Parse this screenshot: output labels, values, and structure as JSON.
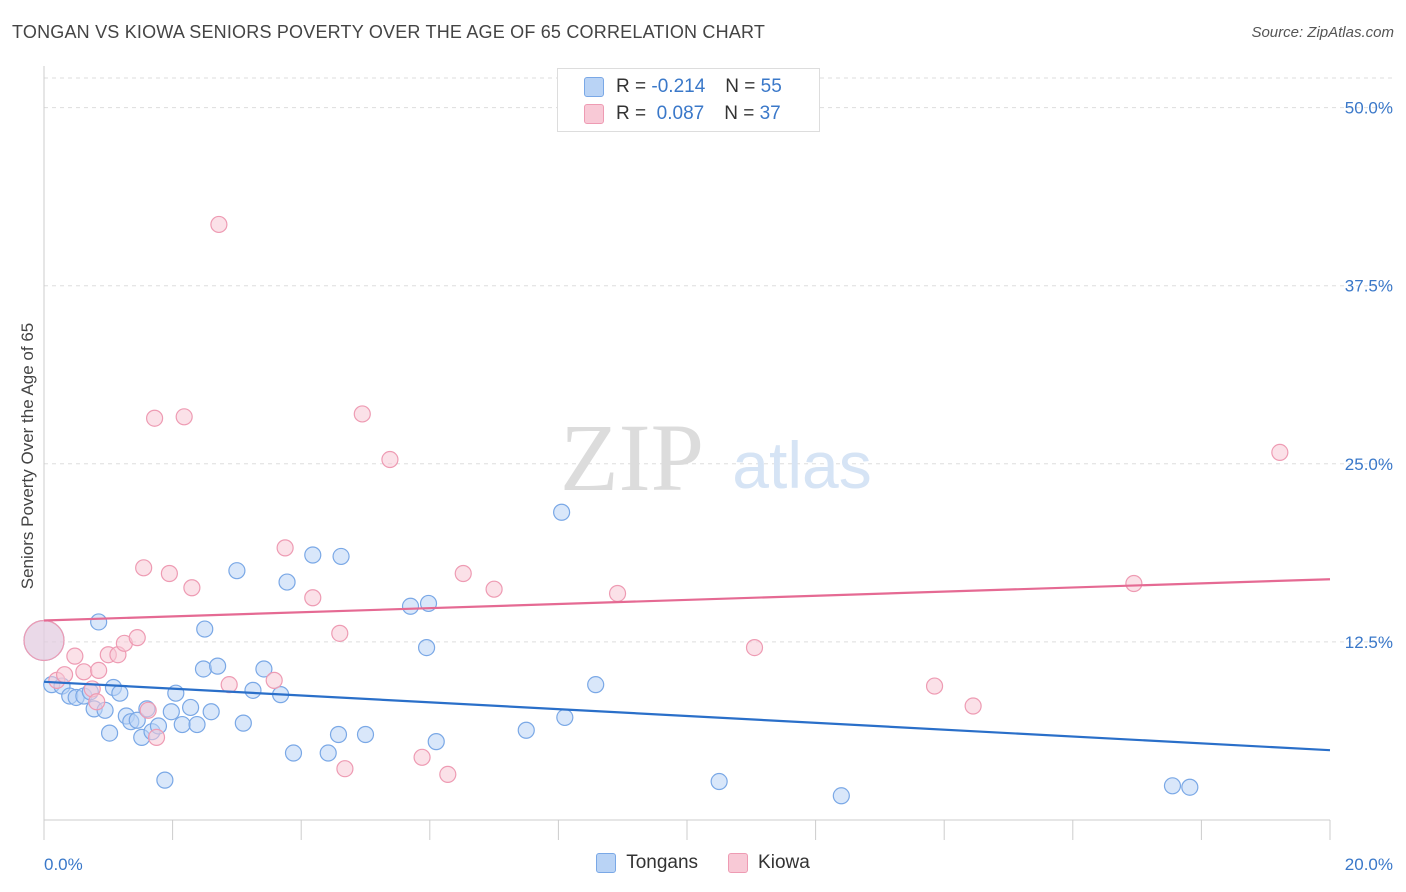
{
  "title": "TONGAN VS KIOWA SENIORS POVERTY OVER THE AGE OF 65 CORRELATION CHART",
  "source": "Source: ZipAtlas.com",
  "watermark": {
    "zip": "ZIP",
    "atlas": "atlas"
  },
  "legend": {
    "rows": [
      {
        "r_label": "R =",
        "r_value": "-0.214",
        "n_label": "N =",
        "n_value": "55"
      },
      {
        "r_label": "R =",
        "r_value": " 0.087",
        "n_label": "N =",
        "n_value": "37"
      }
    ]
  },
  "colors": {
    "blue_fill": "#b9d3f5",
    "blue_stroke": "#7aa8e6",
    "blue_line": "#2a6fc9",
    "pink_fill": "#f8c9d6",
    "pink_stroke": "#ee9bb3",
    "pink_line": "#e56a93",
    "tick_text": "#3a78c9",
    "grid": "#dddddd"
  },
  "chart_data": {
    "type": "scatter",
    "title": "TONGAN VS KIOWA SENIORS POVERTY OVER THE AGE OF 65 CORRELATION CHART",
    "xlabel": "",
    "ylabel": "Seniors Poverty Over the Age of 65",
    "xlim": [
      0,
      20
    ],
    "ylim": [
      0,
      52.5
    ],
    "x_tick_labels": [
      "0.0%",
      "20.0%"
    ],
    "y_ticks": [
      12.5,
      25.0,
      37.5,
      50.0
    ],
    "y_tick_labels": [
      "12.5%",
      "25.0%",
      "37.5%",
      "50.0%"
    ],
    "grid": true,
    "series": [
      {
        "name": "Tongans",
        "color": "#7aa8e6",
        "trend": {
          "x": [
            0,
            20
          ],
          "y": [
            9.7,
            4.9
          ]
        },
        "points": [
          {
            "x": 0.0,
            "y": 12.6,
            "big": true
          },
          {
            "x": 0.12,
            "y": 9.5
          },
          {
            "x": 0.28,
            "y": 9.4
          },
          {
            "x": 0.4,
            "y": 8.7
          },
          {
            "x": 0.5,
            "y": 8.6
          },
          {
            "x": 0.62,
            "y": 8.7
          },
          {
            "x": 0.72,
            "y": 9.0
          },
          {
            "x": 0.78,
            "y": 7.8
          },
          {
            "x": 0.85,
            "y": 13.9
          },
          {
            "x": 0.95,
            "y": 7.7
          },
          {
            "x": 1.02,
            "y": 6.1
          },
          {
            "x": 1.08,
            "y": 9.3
          },
          {
            "x": 1.18,
            "y": 8.9
          },
          {
            "x": 1.28,
            "y": 7.3
          },
          {
            "x": 1.35,
            "y": 6.9
          },
          {
            "x": 1.45,
            "y": 7.0
          },
          {
            "x": 1.52,
            "y": 5.8
          },
          {
            "x": 1.6,
            "y": 7.8
          },
          {
            "x": 1.68,
            "y": 6.2
          },
          {
            "x": 1.78,
            "y": 6.6
          },
          {
            "x": 1.88,
            "y": 2.8
          },
          {
            "x": 1.98,
            "y": 7.6
          },
          {
            "x": 2.05,
            "y": 8.9
          },
          {
            "x": 2.15,
            "y": 6.7
          },
          {
            "x": 2.28,
            "y": 7.9
          },
          {
            "x": 2.38,
            "y": 6.7
          },
          {
            "x": 2.5,
            "y": 13.4
          },
          {
            "x": 2.48,
            "y": 10.6
          },
          {
            "x": 2.6,
            "y": 7.6
          },
          {
            "x": 2.7,
            "y": 10.8
          },
          {
            "x": 3.0,
            "y": 17.5
          },
          {
            "x": 3.1,
            "y": 6.8
          },
          {
            "x": 3.25,
            "y": 9.1
          },
          {
            "x": 3.42,
            "y": 10.6
          },
          {
            "x": 3.68,
            "y": 8.8
          },
          {
            "x": 3.78,
            "y": 16.7
          },
          {
            "x": 3.88,
            "y": 4.7
          },
          {
            "x": 4.18,
            "y": 18.6
          },
          {
            "x": 4.42,
            "y": 4.7
          },
          {
            "x": 4.58,
            "y": 6.0
          },
          {
            "x": 4.62,
            "y": 18.5
          },
          {
            "x": 5.0,
            "y": 6.0
          },
          {
            "x": 5.7,
            "y": 15.0
          },
          {
            "x": 5.95,
            "y": 12.1
          },
          {
            "x": 5.98,
            "y": 15.2
          },
          {
            "x": 6.1,
            "y": 5.5
          },
          {
            "x": 7.5,
            "y": 6.3
          },
          {
            "x": 8.05,
            "y": 21.6
          },
          {
            "x": 8.1,
            "y": 7.2
          },
          {
            "x": 8.58,
            "y": 9.5
          },
          {
            "x": 10.5,
            "y": 2.7
          },
          {
            "x": 12.4,
            "y": 1.7
          },
          {
            "x": 17.55,
            "y": 2.4
          },
          {
            "x": 17.82,
            "y": 2.3
          }
        ]
      },
      {
        "name": "Kiowa",
        "color": "#ee9bb3",
        "trend": {
          "x": [
            0,
            20
          ],
          "y": [
            14.0,
            16.9
          ]
        },
        "points": [
          {
            "x": 0.0,
            "y": 12.6,
            "big": true
          },
          {
            "x": 0.2,
            "y": 9.8
          },
          {
            "x": 0.32,
            "y": 10.2
          },
          {
            "x": 0.48,
            "y": 11.5
          },
          {
            "x": 0.62,
            "y": 10.4
          },
          {
            "x": 0.75,
            "y": 9.2
          },
          {
            "x": 0.82,
            "y": 8.3
          },
          {
            "x": 0.85,
            "y": 10.5
          },
          {
            "x": 1.0,
            "y": 11.6
          },
          {
            "x": 1.15,
            "y": 11.6
          },
          {
            "x": 1.25,
            "y": 12.4
          },
          {
            "x": 1.45,
            "y": 12.8
          },
          {
            "x": 1.55,
            "y": 17.7
          },
          {
            "x": 1.62,
            "y": 7.7
          },
          {
            "x": 1.75,
            "y": 5.8
          },
          {
            "x": 1.72,
            "y": 28.2
          },
          {
            "x": 1.95,
            "y": 17.3
          },
          {
            "x": 2.18,
            "y": 28.3
          },
          {
            "x": 2.3,
            "y": 16.3
          },
          {
            "x": 2.72,
            "y": 41.8
          },
          {
            "x": 2.88,
            "y": 9.5
          },
          {
            "x": 3.58,
            "y": 9.8
          },
          {
            "x": 3.75,
            "y": 19.1
          },
          {
            "x": 4.18,
            "y": 15.6
          },
          {
            "x": 4.6,
            "y": 13.1
          },
          {
            "x": 4.68,
            "y": 3.6
          },
          {
            "x": 4.95,
            "y": 28.5
          },
          {
            "x": 5.38,
            "y": 25.3
          },
          {
            "x": 5.88,
            "y": 4.4
          },
          {
            "x": 6.28,
            "y": 3.2
          },
          {
            "x": 6.52,
            "y": 17.3
          },
          {
            "x": 7.0,
            "y": 16.2
          },
          {
            "x": 8.92,
            "y": 15.9
          },
          {
            "x": 11.05,
            "y": 12.1
          },
          {
            "x": 13.85,
            "y": 9.4
          },
          {
            "x": 14.45,
            "y": 8.0
          },
          {
            "x": 16.95,
            "y": 16.6
          },
          {
            "x": 19.22,
            "y": 25.8
          }
        ]
      }
    ]
  },
  "bottom_legend": [
    {
      "label": "Tongans"
    },
    {
      "label": "Kiowa"
    }
  ]
}
